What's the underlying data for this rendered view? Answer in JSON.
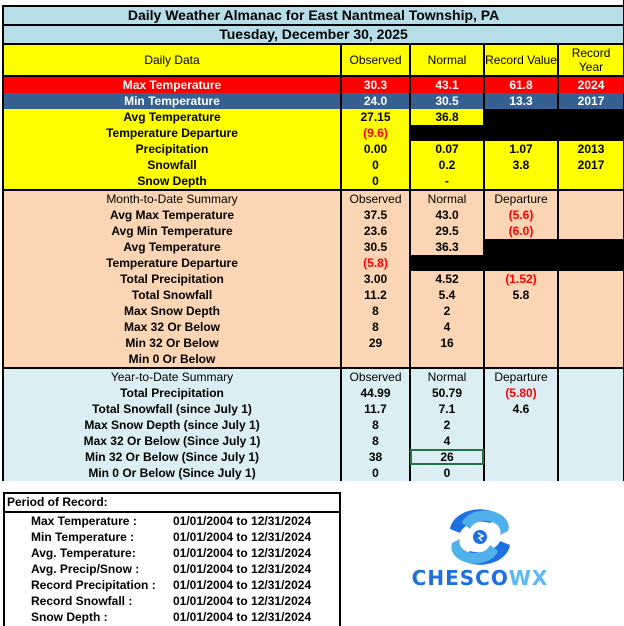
{
  "title": "Daily Weather Almanac for East Nantmeal Township, PA",
  "date": "Tuesday, December 30, 2025",
  "colors": {
    "title_bg": "#b7dee8",
    "daily_bg": "#ffff00",
    "max_bg": "#ff0000",
    "min_bg": "#366092",
    "mtd_bg": "#fcd5b4",
    "ytd_bg": "#daeef3",
    "negative": "#ff0000"
  },
  "daily": {
    "headers": [
      "Daily Data",
      "Observed",
      "Normal",
      "Record Value",
      "Record Year"
    ],
    "rows": [
      {
        "label": "Max Temperature",
        "observed": "30.3",
        "normal": "43.1",
        "record_value": "61.8",
        "record_year": "2024"
      },
      {
        "label": "Min Temperature",
        "observed": "24.0",
        "normal": "30.5",
        "record_value": "13.3",
        "record_year": "2017"
      },
      {
        "label": "Avg Temperature",
        "observed": "27.15",
        "normal": "36.8",
        "record_value": "",
        "record_year": ""
      },
      {
        "label": "Temperature Departure",
        "observed": "(9.6)",
        "normal": "",
        "record_value": "",
        "record_year": ""
      },
      {
        "label": "Precipitation",
        "observed": "0.00",
        "normal": "0.07",
        "record_value": "1.07",
        "record_year": "2013"
      },
      {
        "label": "Snowfall",
        "observed": "0",
        "normal": "0.2",
        "record_value": "3.8",
        "record_year": "2017"
      },
      {
        "label": "Snow Depth",
        "observed": "0",
        "normal": "-",
        "record_value": "",
        "record_year": ""
      }
    ]
  },
  "mtd": {
    "headers": [
      "Month-to-Date Summary",
      "Observed",
      "Normal",
      "Departure",
      ""
    ],
    "rows": [
      {
        "label": "Avg Max Temperature",
        "observed": "37.5",
        "normal": "43.0",
        "departure": "(5.6)"
      },
      {
        "label": "Avg Min Temperature",
        "observed": "23.6",
        "normal": "29.5",
        "departure": "(6.0)"
      },
      {
        "label": "Avg Temperature",
        "observed": "30.5",
        "normal": "36.3",
        "departure": ""
      },
      {
        "label": "Temperature Departure",
        "observed": "(5.8)",
        "normal": "",
        "departure": ""
      },
      {
        "label": "Total Precipitation",
        "observed": "3.00",
        "normal": "4.52",
        "departure": "(1.52)"
      },
      {
        "label": "Total Snowfall",
        "observed": "11.2",
        "normal": "5.4",
        "departure": "5.8"
      },
      {
        "label": "Max Snow Depth",
        "observed": "8",
        "normal": "2",
        "departure": ""
      },
      {
        "label": "Max 32 Or Below",
        "observed": "8",
        "normal": "4",
        "departure": ""
      },
      {
        "label": "Min 32 Or Below",
        "observed": "29",
        "normal": "16",
        "departure": ""
      },
      {
        "label": "Min 0 Or Below",
        "observed": "",
        "normal": "",
        "departure": ""
      }
    ]
  },
  "ytd": {
    "headers": [
      "Year-to-Date Summary",
      "Observed",
      "Normal",
      "Departure",
      ""
    ],
    "rows": [
      {
        "label": "Total Precipitation",
        "observed": "44.99",
        "normal": "50.79",
        "departure": "(5.80)"
      },
      {
        "label": "Total Snowfall (since July 1)",
        "observed": "11.7",
        "normal": "7.1",
        "departure": "4.6"
      },
      {
        "label": "Max Snow Depth (since July 1)",
        "observed": "8",
        "normal": "2",
        "departure": ""
      },
      {
        "label": "Max 32 Or Below (Since July 1)",
        "observed": "8",
        "normal": "4",
        "departure": ""
      },
      {
        "label": "Min 32 Or Below (Since July 1)",
        "observed": "38",
        "normal": "26",
        "departure": ""
      },
      {
        "label": "Min 0 Or Below (Since July 1)",
        "observed": "0",
        "normal": "0",
        "departure": ""
      }
    ]
  },
  "period_of_record": {
    "title": "Period of Record:",
    "rows": [
      {
        "label": "Max Temperature :",
        "range": "01/01/2004 to 12/31/2024"
      },
      {
        "label": "Min Temperature :",
        "range": "01/01/2004 to 12/31/2024"
      },
      {
        "label": "Avg. Temperature:",
        "range": "01/01/2004 to 12/31/2024"
      },
      {
        "label": "Avg. Precip/Snow :",
        "range": "01/01/2004 to 12/31/2024"
      },
      {
        "label": "Record Precipitation :",
        "range": "01/01/2004 to 12/31/2024"
      },
      {
        "label": "Record Snowfall :",
        "range": "01/01/2004 to 12/31/2024"
      },
      {
        "label": "Snow Depth :",
        "range": "01/01/2004 to 12/31/2024"
      }
    ]
  },
  "logo": {
    "text": "CHESCOWX",
    "icon": "swirl-storm-icon"
  }
}
